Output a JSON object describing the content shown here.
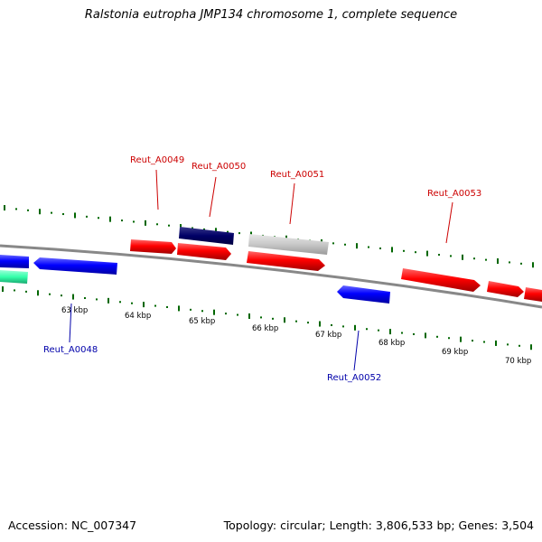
{
  "title": "Ralstonia eutropha JMP134 chromosome 1, complete sequence",
  "footer": {
    "accession": "Accession: NC_007347",
    "summary": "Topology: circular; Length: 3,806,533 bp; Genes: 3,504"
  },
  "colors": {
    "forward_cds": "#ff0000",
    "reverse_cds": "#0000ff",
    "forward_label": "#cc0000",
    "reverse_label": "#0000aa",
    "dark_navy": "#000066",
    "gray": "#c8c8c8",
    "teal": "#33ffaa",
    "gc_ticks": "#006600",
    "backbone": "#888888"
  },
  "scale_labels": [
    "63 kbp",
    "64 kbp",
    "65 kbp",
    "66 kbp",
    "67 kbp",
    "68 kbp",
    "69 kbp",
    "70 kbp"
  ],
  "gene_labels": [
    {
      "id": "l49",
      "text": "Reut_A0049",
      "strand": "forward"
    },
    {
      "id": "l50",
      "text": "Reut_A0050",
      "strand": "forward"
    },
    {
      "id": "l51",
      "text": "Reut_A0051",
      "strand": "forward"
    },
    {
      "id": "l53",
      "text": "Reut_A0053",
      "strand": "forward"
    },
    {
      "id": "l48",
      "text": "Reut_A0048",
      "strand": "reverse"
    },
    {
      "id": "l52",
      "text": "Reut_A0052",
      "strand": "reverse"
    }
  ]
}
